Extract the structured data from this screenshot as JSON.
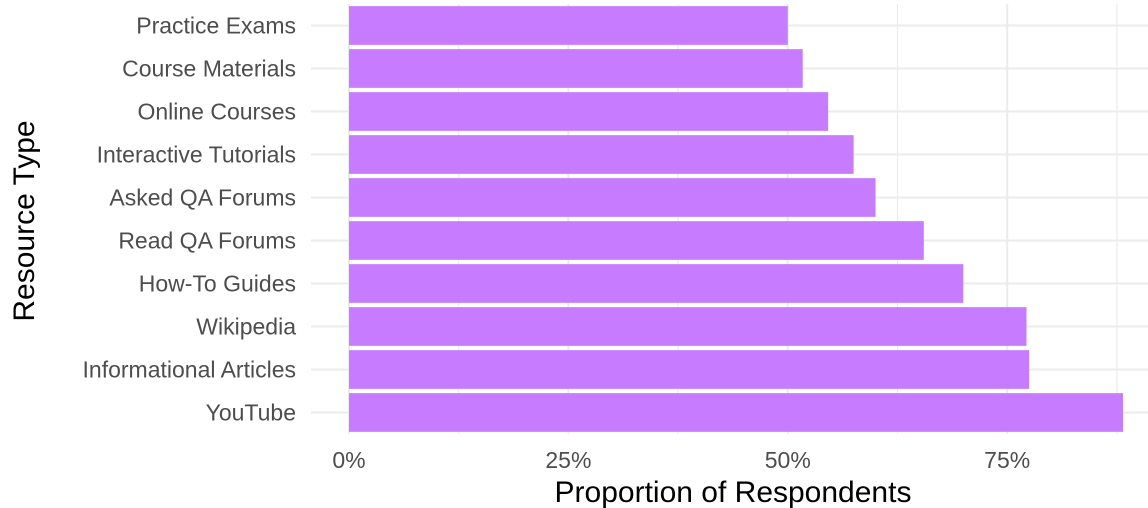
{
  "chart_data": {
    "type": "bar",
    "orientation": "horizontal",
    "title": "",
    "xlabel": "Proportion of Respondents",
    "ylabel": "Resource Type",
    "categories": [
      "Practice Exams",
      "Course Materials",
      "Online Courses",
      "Interactive Tutorials",
      "Asked QA Forums",
      "Read QA Forums",
      "How-To Guides",
      "Wikipedia",
      "Informational Articles",
      "YouTube"
    ],
    "values": [
      0.5,
      0.517,
      0.546,
      0.575,
      0.6,
      0.655,
      0.7,
      0.772,
      0.775,
      0.882
    ],
    "xlim": [
      0,
      0.9
    ],
    "x_ticks": [
      0,
      0.25,
      0.5,
      0.75
    ],
    "x_tick_labels": [
      "0%",
      "25%",
      "50%",
      "75%"
    ],
    "grid": true,
    "bar_color": "#c77cff",
    "grid_color": "#ebebeb"
  }
}
